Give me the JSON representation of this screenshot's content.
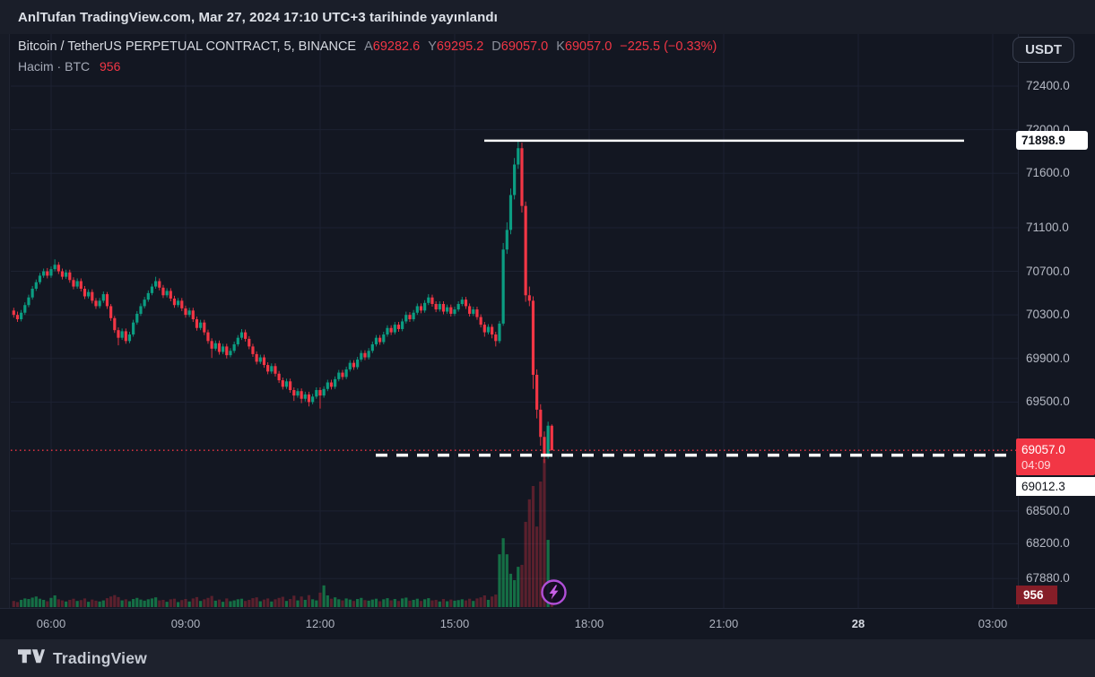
{
  "header": {
    "published_line": "AnlTufan TradingView.com, Mar 27, 2024 17:10 UTC+3 tarihinde yayınlandı"
  },
  "toolbar": {
    "currency_button": "USDT"
  },
  "legend": {
    "symbol_title": "Bitcoin / TetherUS PERPETUAL CONTRACT, 5, BINANCE",
    "ohlc": [
      {
        "k": "A",
        "v": "69282.6"
      },
      {
        "k": "Y",
        "v": "69295.2"
      },
      {
        "k": "D",
        "v": "69057.0"
      },
      {
        "k": "K",
        "v": "69057.0"
      }
    ],
    "change": "−225.5 (−0.33%)",
    "volume_label": "Hacim · BTC",
    "volume_value": "956"
  },
  "axes": {
    "price_ticks": [
      {
        "label": "72400.0",
        "price": 72400
      },
      {
        "label": "72000.0",
        "price": 72000
      },
      {
        "label": "71600.0",
        "price": 71600
      },
      {
        "label": "71100.0",
        "price": 71100
      },
      {
        "label": "70700.0",
        "price": 70700
      },
      {
        "label": "70300.0",
        "price": 70300
      },
      {
        "label": "69900.0",
        "price": 69900
      },
      {
        "label": "69500.0",
        "price": 69500
      },
      {
        "label": "68500.0",
        "price": 68500
      },
      {
        "label": "68200.0",
        "price": 68200
      },
      {
        "label": "67880.0",
        "price": 67880
      }
    ],
    "time_ticks": [
      {
        "label": "06:00",
        "bold": false
      },
      {
        "label": "09:00",
        "bold": false
      },
      {
        "label": "12:00",
        "bold": false
      },
      {
        "label": "15:00",
        "bold": false
      },
      {
        "label": "18:00",
        "bold": false
      },
      {
        "label": "21:00",
        "bold": false
      },
      {
        "label": "28",
        "bold": true
      },
      {
        "label": "03:00",
        "bold": false
      }
    ]
  },
  "labels": {
    "level_label": "71898.9",
    "last_price": "69057.0",
    "countdown": "04:09",
    "measure_label": "69012.3",
    "volume_axis_label": "956"
  },
  "footer": {
    "brand": "TradingView"
  },
  "colors": {
    "up": "#0b9d82",
    "down": "#f23645",
    "vol_up": "rgba(23,166,91,0.62)",
    "vol_down": "rgba(242,54,69,0.32)",
    "grid": "#1d2232",
    "level_line": "#ffffff",
    "last_price_line": "#f23645",
    "marker_ring": "#b14fd8"
  },
  "chart_data": {
    "type": "candlestick",
    "symbol": "Bitcoin / TetherUS PERPETUAL CONTRACT",
    "exchange": "BINANCE",
    "interval": "5",
    "start_time": "05:10",
    "interval_minutes": 5,
    "price_axis_visible_range": [
      67700,
      72550
    ],
    "legend_ohlc": {
      "open": 69282.6,
      "high": 69295.2,
      "low": 69057.0,
      "close": 69057.0,
      "change": -225.5,
      "change_pct": -0.33
    },
    "annotations": {
      "white_level_line": {
        "price": 71898.9
      },
      "last_price_line": {
        "price": 69057.0,
        "countdown": "04:09"
      },
      "dashed_alert_line": {
        "price": 69012.3
      },
      "current_volume_btc": 956
    },
    "candles": [
      [
        70340,
        70365,
        70275,
        70300,
        220
      ],
      [
        70300,
        70330,
        70235,
        70260,
        180
      ],
      [
        70260,
        70345,
        70240,
        70320,
        260
      ],
      [
        70320,
        70415,
        70300,
        70390,
        310
      ],
      [
        70390,
        70485,
        70370,
        70460,
        290
      ],
      [
        70460,
        70565,
        70440,
        70540,
        340
      ],
      [
        70540,
        70625,
        70520,
        70600,
        380
      ],
      [
        70600,
        70685,
        70580,
        70660,
        300
      ],
      [
        70660,
        70725,
        70640,
        70700,
        260
      ],
      [
        70700,
        70730,
        70635,
        70660,
        210
      ],
      [
        70660,
        70745,
        70640,
        70720,
        330
      ],
      [
        70720,
        70810,
        70700,
        70760,
        420
      ],
      [
        70760,
        70785,
        70675,
        70700,
        280
      ],
      [
        70700,
        70725,
        70625,
        70650,
        240
      ],
      [
        70650,
        70715,
        70630,
        70690,
        200
      ],
      [
        70690,
        70715,
        70595,
        70620,
        260
      ],
      [
        70620,
        70645,
        70535,
        70560,
        300
      ],
      [
        70560,
        70635,
        70540,
        70610,
        220
      ],
      [
        70610,
        70635,
        70515,
        70540,
        250
      ],
      [
        70540,
        70565,
        70445,
        70470,
        310
      ],
      [
        70470,
        70535,
        70450,
        70510,
        190
      ],
      [
        70510,
        70535,
        70405,
        70430,
        270
      ],
      [
        70430,
        70455,
        70355,
        70380,
        230
      ],
      [
        70380,
        70455,
        70360,
        70430,
        200
      ],
      [
        70430,
        70515,
        70410,
        70490,
        240
      ],
      [
        70490,
        70510,
        70355,
        70380,
        320
      ],
      [
        70380,
        70400,
        70245,
        70270,
        380
      ],
      [
        70270,
        70290,
        70135,
        70160,
        430
      ],
      [
        70160,
        70185,
        70020,
        70090,
        360
      ],
      [
        70090,
        70175,
        70070,
        70150,
        240
      ],
      [
        70150,
        70175,
        70035,
        70060,
        280
      ],
      [
        70060,
        70145,
        70040,
        70120,
        210
      ],
      [
        70120,
        70255,
        70100,
        70230,
        290
      ],
      [
        70230,
        70335,
        70210,
        70310,
        330
      ],
      [
        70310,
        70405,
        70290,
        70380,
        270
      ],
      [
        70380,
        70465,
        70360,
        70440,
        230
      ],
      [
        70440,
        70525,
        70420,
        70500,
        280
      ],
      [
        70500,
        70585,
        70480,
        70560,
        310
      ],
      [
        70560,
        70650,
        70540,
        70610,
        350
      ],
      [
        70610,
        70635,
        70525,
        70550,
        240
      ],
      [
        70550,
        70575,
        70455,
        70480,
        260
      ],
      [
        70480,
        70545,
        70460,
        70520,
        190
      ],
      [
        70520,
        70545,
        70425,
        70450,
        280
      ],
      [
        70450,
        70475,
        70365,
        70390,
        300
      ],
      [
        70390,
        70455,
        70370,
        70430,
        180
      ],
      [
        70430,
        70455,
        70335,
        70360,
        250
      ],
      [
        70360,
        70385,
        70275,
        70300,
        290
      ],
      [
        70300,
        70365,
        70280,
        70340,
        200
      ],
      [
        70340,
        70365,
        70235,
        70260,
        310
      ],
      [
        70260,
        70285,
        70155,
        70180,
        360
      ],
      [
        70180,
        70255,
        70160,
        70230,
        220
      ],
      [
        70230,
        70255,
        70115,
        70140,
        280
      ],
      [
        70140,
        70165,
        70035,
        70060,
        330
      ],
      [
        70060,
        70085,
        69905,
        69990,
        400
      ],
      [
        69990,
        70065,
        69970,
        70040,
        230
      ],
      [
        70040,
        70065,
        69935,
        69960,
        270
      ],
      [
        69960,
        70035,
        69940,
        70010,
        190
      ],
      [
        70010,
        70035,
        69900,
        69930,
        310
      ],
      [
        69930,
        69995,
        69910,
        69970,
        210
      ],
      [
        69970,
        70055,
        69950,
        70030,
        240
      ],
      [
        70030,
        70115,
        70010,
        70090,
        280
      ],
      [
        70090,
        70170,
        70070,
        70140,
        300
      ],
      [
        70140,
        70165,
        70055,
        70080,
        220
      ],
      [
        70080,
        70105,
        69985,
        70010,
        260
      ],
      [
        70010,
        70035,
        69915,
        69940,
        320
      ],
      [
        69940,
        69965,
        69845,
        69870,
        350
      ],
      [
        69870,
        69935,
        69850,
        69910,
        210
      ],
      [
        69910,
        69935,
        69815,
        69840,
        270
      ],
      [
        69840,
        69865,
        69755,
        69780,
        310
      ],
      [
        69780,
        69855,
        69760,
        69830,
        200
      ],
      [
        69830,
        69855,
        69735,
        69760,
        280
      ],
      [
        69760,
        69785,
        69675,
        69700,
        330
      ],
      [
        69700,
        69725,
        69615,
        69640,
        370
      ],
      [
        69640,
        69715,
        69620,
        69690,
        220
      ],
      [
        69690,
        69715,
        69585,
        69610,
        290
      ],
      [
        69610,
        69635,
        69510,
        69560,
        410
      ],
      [
        69560,
        69625,
        69540,
        69600,
        240
      ],
      [
        69600,
        69625,
        69490,
        69530,
        380
      ],
      [
        69530,
        69595,
        69505,
        69570,
        260
      ],
      [
        69570,
        69595,
        69460,
        69500,
        430
      ],
      [
        69500,
        69575,
        69480,
        69550,
        280
      ],
      [
        69550,
        69635,
        69530,
        69610,
        240
      ],
      [
        69610,
        69635,
        69440,
        69560,
        520
      ],
      [
        69560,
        69645,
        69540,
        69620,
        780
      ],
      [
        69620,
        69705,
        69600,
        69680,
        420
      ],
      [
        69680,
        69705,
        69615,
        69640,
        300
      ],
      [
        69640,
        69735,
        69620,
        69710,
        350
      ],
      [
        69710,
        69795,
        69690,
        69770,
        280
      ],
      [
        69770,
        69795,
        69705,
        69730,
        240
      ],
      [
        69730,
        69825,
        69710,
        69800,
        310
      ],
      [
        69800,
        69885,
        69780,
        69860,
        270
      ],
      [
        69860,
        69885,
        69795,
        69820,
        220
      ],
      [
        69820,
        69915,
        69800,
        69890,
        290
      ],
      [
        69890,
        69975,
        69870,
        69950,
        330
      ],
      [
        69950,
        69975,
        69885,
        69910,
        250
      ],
      [
        69910,
        69995,
        69890,
        69970,
        230
      ],
      [
        69970,
        70055,
        69950,
        70030,
        270
      ],
      [
        70030,
        70115,
        70010,
        70090,
        300
      ],
      [
        70090,
        70115,
        70025,
        70050,
        210
      ],
      [
        70050,
        70145,
        70030,
        70120,
        280
      ],
      [
        70120,
        70205,
        70100,
        70180,
        320
      ],
      [
        70180,
        70205,
        70115,
        70140,
        240
      ],
      [
        70140,
        70235,
        70120,
        70210,
        290
      ],
      [
        70210,
        70235,
        70145,
        70170,
        220
      ],
      [
        70170,
        70265,
        70150,
        70240,
        310
      ],
      [
        70240,
        70330,
        70220,
        70300,
        340
      ],
      [
        70300,
        70325,
        70235,
        70260,
        230
      ],
      [
        70260,
        70345,
        70240,
        70320,
        260
      ],
      [
        70320,
        70405,
        70300,
        70380,
        300
      ],
      [
        70380,
        70405,
        70315,
        70340,
        220
      ],
      [
        70340,
        70435,
        70320,
        70410,
        280
      ],
      [
        70410,
        70490,
        70390,
        70460,
        320
      ],
      [
        70460,
        70485,
        70375,
        70400,
        240
      ],
      [
        70400,
        70425,
        70325,
        70350,
        260
      ],
      [
        70350,
        70425,
        70330,
        70400,
        200
      ],
      [
        70400,
        70425,
        70305,
        70330,
        290
      ],
      [
        70330,
        70395,
        70310,
        70370,
        210
      ],
      [
        70370,
        70395,
        70285,
        70310,
        270
      ],
      [
        70310,
        70375,
        70290,
        70350,
        230
      ],
      [
        70350,
        70425,
        70330,
        70400,
        250
      ],
      [
        70400,
        70465,
        70380,
        70440,
        280
      ],
      [
        70440,
        70465,
        70355,
        70380,
        240
      ],
      [
        70380,
        70405,
        70285,
        70310,
        300
      ],
      [
        70310,
        70375,
        70290,
        70350,
        220
      ],
      [
        70350,
        70375,
        70255,
        70280,
        310
      ],
      [
        70280,
        70305,
        70185,
        70210,
        350
      ],
      [
        70210,
        70235,
        70100,
        70140,
        420
      ],
      [
        70140,
        70215,
        70120,
        70190,
        260
      ],
      [
        70190,
        70215,
        70085,
        70120,
        380
      ],
      [
        70120,
        70145,
        70010,
        70060,
        450
      ],
      [
        70060,
        70245,
        70040,
        70220,
        1900
      ],
      [
        70220,
        70960,
        70200,
        70900,
        2480
      ],
      [
        70900,
        71150,
        70860,
        71080,
        1900
      ],
      [
        71080,
        71460,
        71040,
        71400,
        1200
      ],
      [
        71400,
        71740,
        71360,
        71680,
        970
      ],
      [
        71680,
        71898.9,
        71640,
        71830,
        1450
      ],
      [
        71830,
        71880,
        71240,
        71300,
        1520
      ],
      [
        71300,
        71340,
        70420,
        70480,
        3070
      ],
      [
        70480,
        70560,
        70380,
        70430,
        3880
      ],
      [
        70430,
        70470,
        69620,
        69750,
        4360
      ],
      [
        69750,
        69800,
        69350,
        69430,
        2900
      ],
      [
        69430,
        69480,
        69100,
        69180,
        4520
      ],
      [
        69180,
        69230,
        68940,
        69010,
        5330
      ],
      [
        69010,
        69320,
        68980,
        69283,
        2420
      ],
      [
        69282.6,
        69295.2,
        69057.0,
        69057.0,
        956
      ]
    ]
  }
}
